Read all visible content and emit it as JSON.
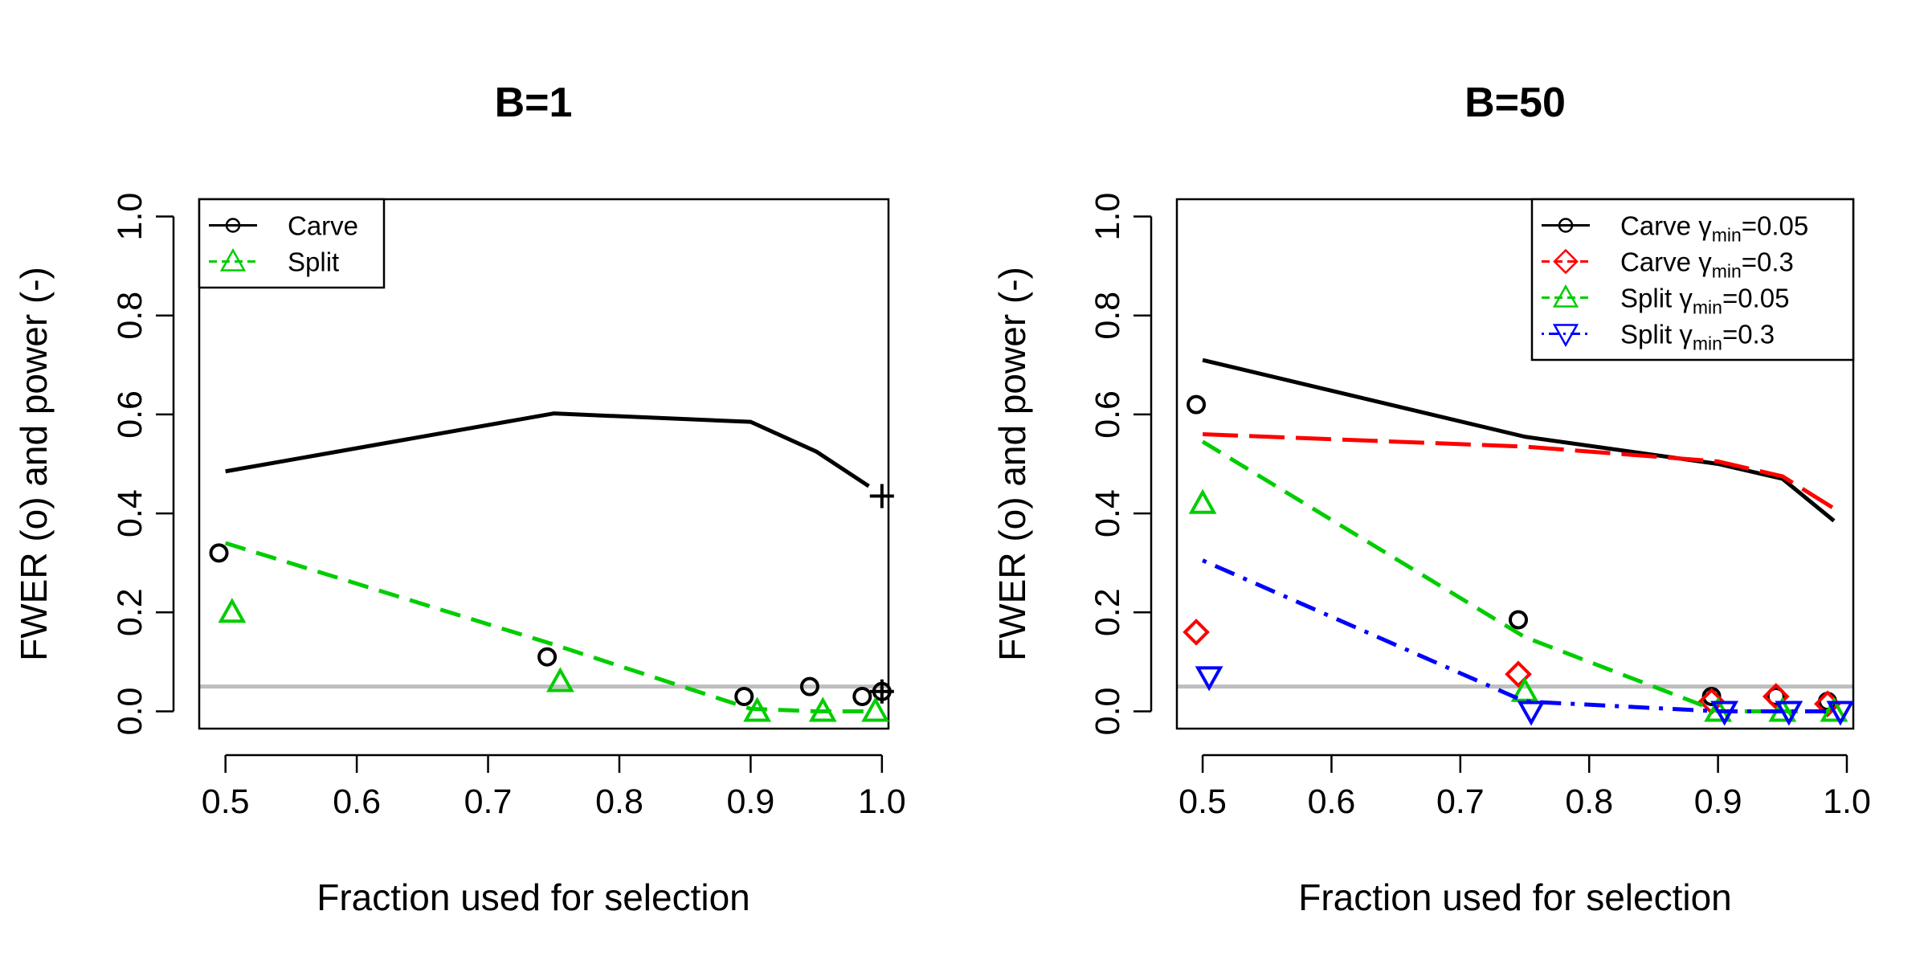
{
  "chart_data": [
    {
      "type": "line",
      "title": "B=1",
      "xlabel": "Fraction used for selection",
      "ylabel": "FWER (o) and power (-)",
      "xlim": [
        0.48,
        1.005
      ],
      "ylim": [
        -0.035,
        1.035
      ],
      "xticks": [
        0.5,
        0.6,
        0.7,
        0.8,
        0.9,
        1.0
      ],
      "xtick_labels": [
        "0.5",
        "0.6",
        "0.7",
        "0.8",
        "0.9",
        "1.0"
      ],
      "yticks": [
        0.0,
        0.2,
        0.4,
        0.6,
        0.8,
        1.0
      ],
      "ytick_labels": [
        "0.0",
        "0.2",
        "0.4",
        "0.6",
        "0.8",
        "1.0"
      ],
      "reference_line": {
        "y": 0.05,
        "color": "#bebebe"
      },
      "legend": {
        "position": "top-left",
        "entries": [
          {
            "label": "Carve",
            "sub": "",
            "tail": "",
            "color": "#000000",
            "dash": "solid",
            "marker": "circle"
          },
          {
            "label": "Split",
            "sub": "",
            "tail": "",
            "color": "#00cd00",
            "dash": "dashed",
            "marker": "triangle-up"
          }
        ]
      },
      "series": [
        {
          "name": "Carve",
          "color": "#000000",
          "dash": "solid",
          "marker": "circle",
          "power": {
            "x": [
              0.5,
              0.75,
              0.9,
              0.95,
              0.99
            ],
            "y": [
              0.485,
              0.602,
              0.585,
              0.525,
              0.455
            ]
          },
          "fwer": {
            "x": [
              0.495,
              0.745,
              0.895,
              0.945,
              0.985,
              1.0
            ],
            "y": [
              0.32,
              0.11,
              0.03,
              0.05,
              0.03,
              0.04
            ]
          }
        },
        {
          "name": "Split",
          "color": "#00cd00",
          "dash": "dashed",
          "marker": "triangle-up",
          "power": {
            "x": [
              0.5,
              0.75,
              0.9,
              0.95,
              0.99
            ],
            "y": [
              0.34,
              0.135,
              0.005,
              0.0,
              0.0
            ]
          },
          "fwer": {
            "x": [
              0.505,
              0.755,
              0.905,
              0.955,
              0.995
            ],
            "y": [
              0.2,
              0.06,
              0.0,
              0.0,
              0.0
            ]
          }
        }
      ],
      "extra_points": [
        {
          "x": 1.0,
          "y": 0.435,
          "marker": "plus",
          "color": "#000000"
        },
        {
          "x": 1.0,
          "y": 0.04,
          "marker": "plus",
          "color": "#000000"
        }
      ]
    },
    {
      "type": "line",
      "title": "B=50",
      "xlabel": "Fraction used for selection",
      "ylabel": "FWER (o) and power (-)",
      "xlim": [
        0.48,
        1.005
      ],
      "ylim": [
        -0.035,
        1.035
      ],
      "xticks": [
        0.5,
        0.6,
        0.7,
        0.8,
        0.9,
        1.0
      ],
      "xtick_labels": [
        "0.5",
        "0.6",
        "0.7",
        "0.8",
        "0.9",
        "1.0"
      ],
      "yticks": [
        0.0,
        0.2,
        0.4,
        0.6,
        0.8,
        1.0
      ],
      "ytick_labels": [
        "0.0",
        "0.2",
        "0.4",
        "0.6",
        "0.8",
        "1.0"
      ],
      "reference_line": {
        "y": 0.05,
        "color": "#bebebe"
      },
      "legend": {
        "position": "top-right",
        "entries": [
          {
            "label": "Carve γ",
            "sub": "min",
            "tail": "=0.05",
            "color": "#000000",
            "dash": "solid",
            "marker": "circle"
          },
          {
            "label": "Carve γ",
            "sub": "min",
            "tail": "=0.3",
            "color": "#ff0000",
            "dash": "longdash",
            "marker": "diamond"
          },
          {
            "label": "Split γ",
            "sub": "min",
            "tail": "=0.05",
            "color": "#00cd00",
            "dash": "dashed",
            "marker": "triangle-up"
          },
          {
            "label": "Split γ",
            "sub": "min",
            "tail": "=0.3",
            "color": "#0000ff",
            "dash": "dotdash",
            "marker": "triangle-down"
          }
        ]
      },
      "series": [
        {
          "name": "Carve γmin=0.05",
          "color": "#000000",
          "dash": "solid",
          "marker": "circle",
          "power": {
            "x": [
              0.5,
              0.75,
              0.9,
              0.95,
              0.99
            ],
            "y": [
              0.71,
              0.555,
              0.5,
              0.47,
              0.385
            ]
          },
          "fwer": {
            "x": [
              0.495,
              0.745,
              0.895,
              0.945,
              0.985
            ],
            "y": [
              0.62,
              0.185,
              0.03,
              0.03,
              0.02
            ]
          }
        },
        {
          "name": "Carve γmin=0.3",
          "color": "#ff0000",
          "dash": "longdash",
          "marker": "diamond",
          "power": {
            "x": [
              0.5,
              0.75,
              0.9,
              0.95,
              0.99
            ],
            "y": [
              0.56,
              0.535,
              0.505,
              0.475,
              0.41
            ]
          },
          "fwer": {
            "x": [
              0.495,
              0.745,
              0.895,
              0.945,
              0.985
            ],
            "y": [
              0.16,
              0.075,
              0.02,
              0.03,
              0.015
            ]
          }
        },
        {
          "name": "Split γmin=0.05",
          "color": "#00cd00",
          "dash": "dashed",
          "marker": "triangle-up",
          "power": {
            "x": [
              0.5,
              0.75,
              0.9,
              0.95,
              0.99
            ],
            "y": [
              0.545,
              0.15,
              0.0,
              0.0,
              0.0
            ]
          },
          "fwer": {
            "x": [
              0.5,
              0.75,
              0.9,
              0.95,
              0.99
            ],
            "y": [
              0.42,
              0.04,
              0.0,
              0.0,
              0.0
            ]
          }
        },
        {
          "name": "Split γmin=0.3",
          "color": "#0000ff",
          "dash": "dotdash",
          "marker": "triangle-down",
          "power": {
            "x": [
              0.5,
              0.75,
              0.9,
              0.95,
              0.99
            ],
            "y": [
              0.305,
              0.02,
              0.0,
              0.0,
              0.0
            ]
          },
          "fwer": {
            "x": [
              0.505,
              0.755,
              0.905,
              0.955,
              0.995
            ],
            "y": [
              0.07,
              0.0,
              0.0,
              0.0,
              0.0
            ]
          }
        }
      ],
      "extra_points": []
    }
  ]
}
